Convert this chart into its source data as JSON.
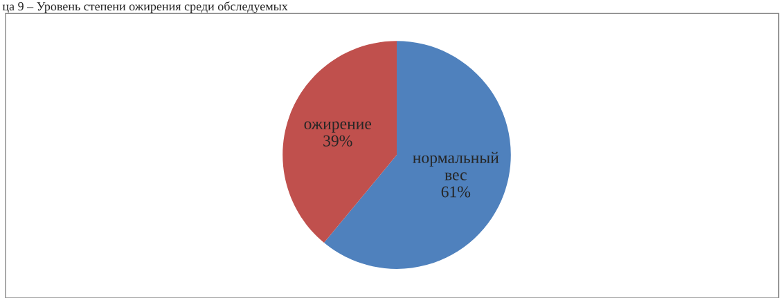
{
  "chart_data": {
    "type": "pie",
    "title": "ца 9 – Уровень степени ожирения среди обследуемых",
    "categories": [
      "нормальный\nвес",
      "ожирение"
    ],
    "values": [
      61,
      39
    ],
    "colors": [
      "#4f81bd",
      "#c0504d"
    ],
    "value_labels": [
      "61%",
      "39%"
    ]
  }
}
